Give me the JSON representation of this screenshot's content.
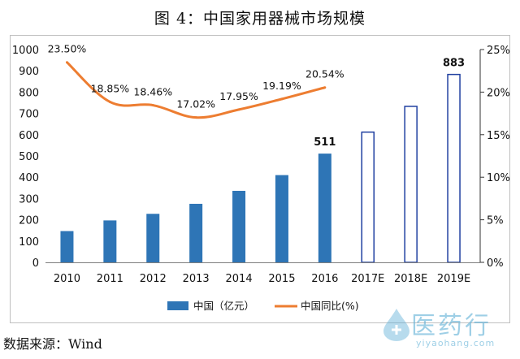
{
  "title": "图 4：中国家用器械市场规模",
  "source": "数据来源：Wind",
  "watermark": {
    "name": "医药行",
    "url": "yiyaohang.com"
  },
  "colors": {
    "bar": "#2e75b6",
    "line": "#ed7d31",
    "bar_outline": "#1f3fa0"
  },
  "chart_data": {
    "type": "bar",
    "categories": [
      "2010",
      "2011",
      "2012",
      "2013",
      "2014",
      "2015",
      "2016",
      "2017E",
      "2018E",
      "2019E"
    ],
    "series": [
      {
        "name": "中国（亿元）",
        "axis": "left",
        "values": [
          147,
          197,
          228,
          275,
          336,
          410,
          511,
          612,
          733,
          883
        ],
        "style": [
          "filled",
          "filled",
          "filled",
          "filled",
          "filled",
          "filled",
          "filled",
          "outline",
          "outline",
          "outline"
        ]
      },
      {
        "name": "中国同比(%)",
        "type": "line",
        "axis": "right",
        "values": [
          23.5,
          18.85,
          18.46,
          17.02,
          17.95,
          19.19,
          20.54,
          null,
          null,
          null
        ]
      }
    ],
    "bar_data_labels": [
      "",
      "",
      "",
      "",
      "",
      "",
      "511",
      "",
      "",
      "883"
    ],
    "line_data_labels": [
      "23.50%",
      "18.85%",
      "18.46%",
      "17.02%",
      "17.95%",
      "19.19%",
      "20.54%"
    ],
    "y_left": {
      "ylim": [
        0,
        1000
      ],
      "ticks": [
        "0",
        "100",
        "200",
        "300",
        "400",
        "500",
        "600",
        "700",
        "800",
        "900",
        "1000"
      ]
    },
    "y_right": {
      "ylim": [
        0,
        25
      ],
      "ticks": [
        "0%",
        "5%",
        "10%",
        "15%",
        "20%",
        "25%"
      ]
    },
    "grid": false,
    "legend": {
      "placement": "bottom",
      "items": [
        "中国（亿元）",
        "中国同比(%)"
      ]
    }
  }
}
